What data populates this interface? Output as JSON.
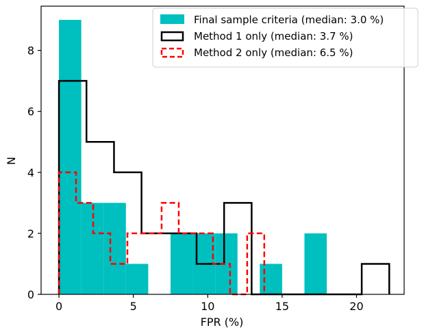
{
  "chart_data": {
    "type": "histogram",
    "xlabel": "FPR (%)",
    "ylabel": "N",
    "xlim": [
      -1.2,
      23.2
    ],
    "ylim": [
      0,
      9.45
    ],
    "xticks": [
      0,
      5,
      10,
      15,
      20
    ],
    "yticks": [
      0,
      2,
      4,
      6,
      8
    ],
    "grid": false,
    "legend_position": "top-right",
    "series": [
      {
        "name": "Final sample criteria (median: 3.0 %)",
        "style": "filled",
        "color": "#00bfbf",
        "edges": [
          0,
          1.5,
          3.0,
          4.5,
          6.0,
          7.5,
          9.0,
          10.5,
          12.0,
          13.5,
          15.0,
          16.5,
          18.0
        ],
        "counts": [
          9,
          3,
          3,
          1,
          0,
          2,
          2,
          2,
          0,
          1,
          0,
          2
        ]
      },
      {
        "name": "Method 1 only (median: 3.7 %)",
        "style": "step",
        "color": "#000000",
        "edges": [
          0,
          1.85,
          3.7,
          5.55,
          7.4,
          9.25,
          11.1,
          12.95,
          14.8,
          16.65,
          18.5,
          20.35,
          22.2
        ],
        "counts": [
          7,
          5,
          4,
          2,
          2,
          1,
          3,
          0,
          0,
          0,
          0,
          1
        ]
      },
      {
        "name": "Method 2 only (median: 6.5 %)",
        "style": "dashed-step",
        "color": "#ff0000",
        "edges": [
          0,
          1.15,
          2.3,
          3.45,
          4.6,
          5.75,
          6.9,
          8.05,
          9.2,
          10.35,
          11.5,
          12.65,
          13.8
        ],
        "counts": [
          4,
          3,
          2,
          1,
          2,
          2,
          3,
          2,
          2,
          1,
          0,
          2
        ]
      }
    ]
  }
}
